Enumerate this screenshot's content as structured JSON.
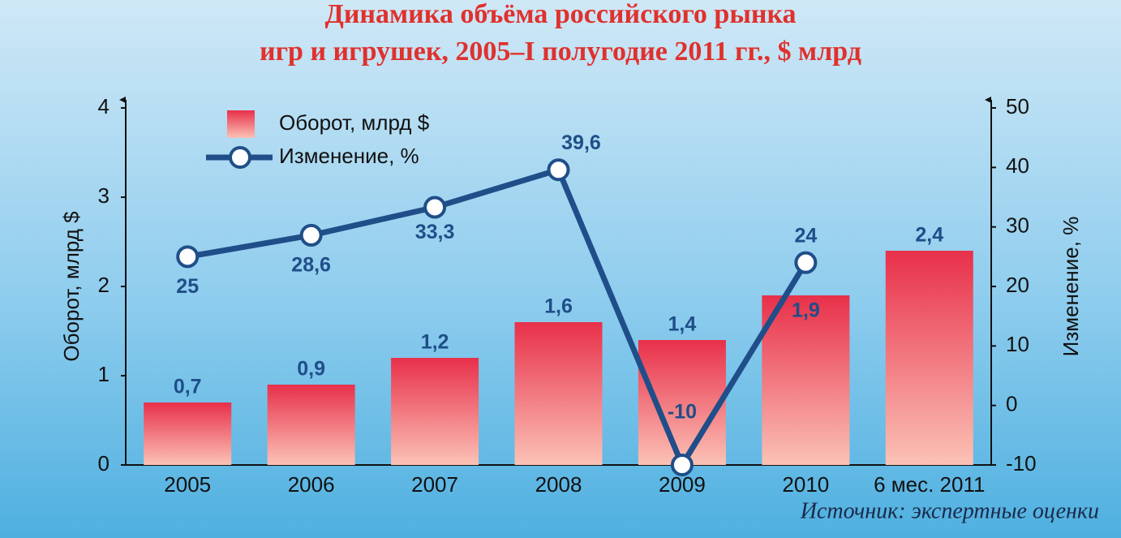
{
  "chart_data": {
    "type": "combo",
    "title": [
      "Динамика объёма российского рынка",
      "игр и игрушек, 2005–I полугодие 2011 гг., $ млрд"
    ],
    "categories": [
      "2005",
      "2006",
      "2007",
      "2008",
      "2009",
      "2010",
      "6 мес. 2011"
    ],
    "series": [
      {
        "name": "Оборот, млрд $",
        "type": "bar",
        "color": "#e8304a",
        "values": [
          0.7,
          0.9,
          1.2,
          1.6,
          1.4,
          1.9,
          2.4
        ],
        "value_labels": [
          "0,7",
          "0,9",
          "1,2",
          "1,6",
          "1,4",
          "1,9",
          "2,4"
        ]
      },
      {
        "name": "Изменение, %",
        "type": "line",
        "axis": "y2",
        "color": "#1f4e89",
        "values": [
          25,
          28.6,
          33.3,
          39.6,
          -10,
          24,
          null
        ],
        "value_labels": [
          "25",
          "28,6",
          "33,3",
          "39,6",
          "-10",
          "24",
          null
        ]
      }
    ],
    "ylabel": "Оборот, млрд $",
    "y2label": "Изменение, %",
    "ylim": [
      0,
      4
    ],
    "yticks": [
      0,
      1,
      2,
      3,
      4
    ],
    "y2lim": [
      -10,
      50
    ],
    "y2ticks": [
      -10,
      0,
      10,
      20,
      30,
      40,
      50
    ],
    "source": "Источник: экспертные оценки"
  }
}
